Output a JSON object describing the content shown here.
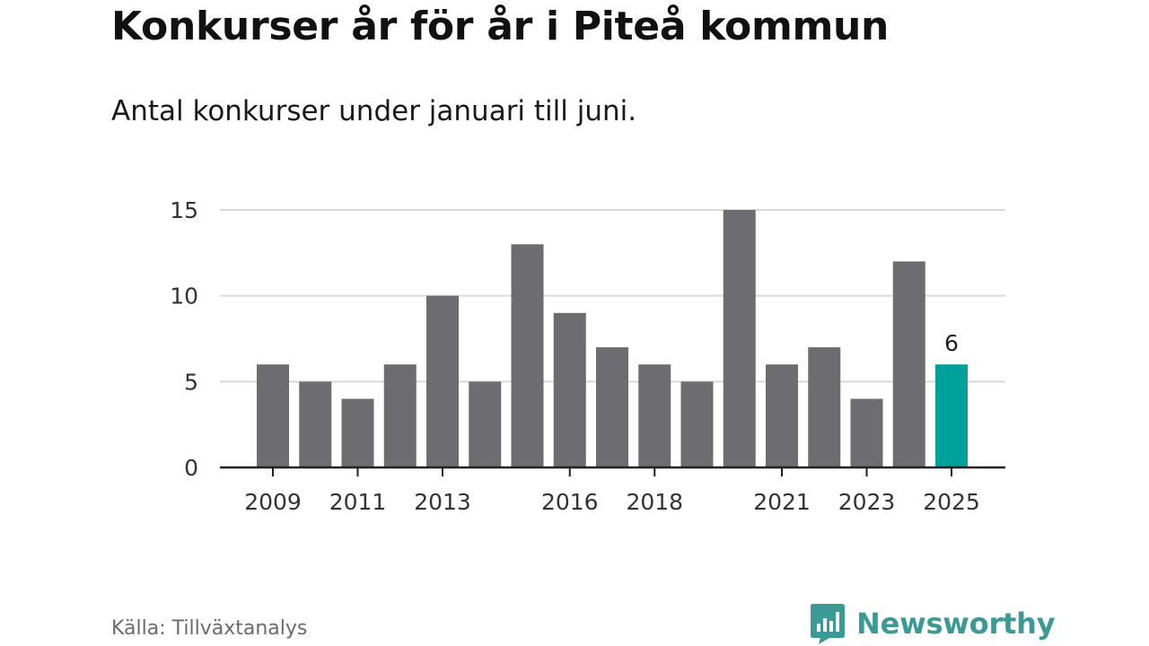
{
  "header": {
    "title": "Konkurser år för år i Piteå kommun",
    "subtitle": "Antal konkurser under januari till juni."
  },
  "footer": {
    "source": "Källa: Tillväxtanalys",
    "brand": "Newsworthy",
    "brand_icon": "newsworthy-logo-icon"
  },
  "colors": {
    "bar": "#6d6c71",
    "highlight": "#00a19a",
    "grid": "#d9d9d9",
    "axis": "#222222",
    "brand": "#3b9a96"
  },
  "chart_data": {
    "type": "bar",
    "categories": [
      "2009",
      "2010",
      "2011",
      "2012",
      "2013",
      "2014",
      "2015",
      "2016",
      "2017",
      "2018",
      "2019",
      "2020",
      "2021",
      "2022",
      "2023",
      "2024",
      "2025"
    ],
    "values": [
      6,
      5,
      4,
      6,
      10,
      5,
      13,
      9,
      7,
      6,
      5,
      15,
      6,
      7,
      4,
      12,
      6
    ],
    "x_tick_labels": [
      "2009",
      "2011",
      "2013",
      "2016",
      "2018",
      "2021",
      "2023",
      "2025"
    ],
    "y_ticks": [
      0,
      5,
      10,
      15
    ],
    "ylim": [
      0,
      15
    ],
    "highlight_category": "2025",
    "data_labels": [
      {
        "category": "2025",
        "text": "6"
      }
    ],
    "grid": true,
    "legend": "none",
    "xlabel": "",
    "ylabel": ""
  }
}
